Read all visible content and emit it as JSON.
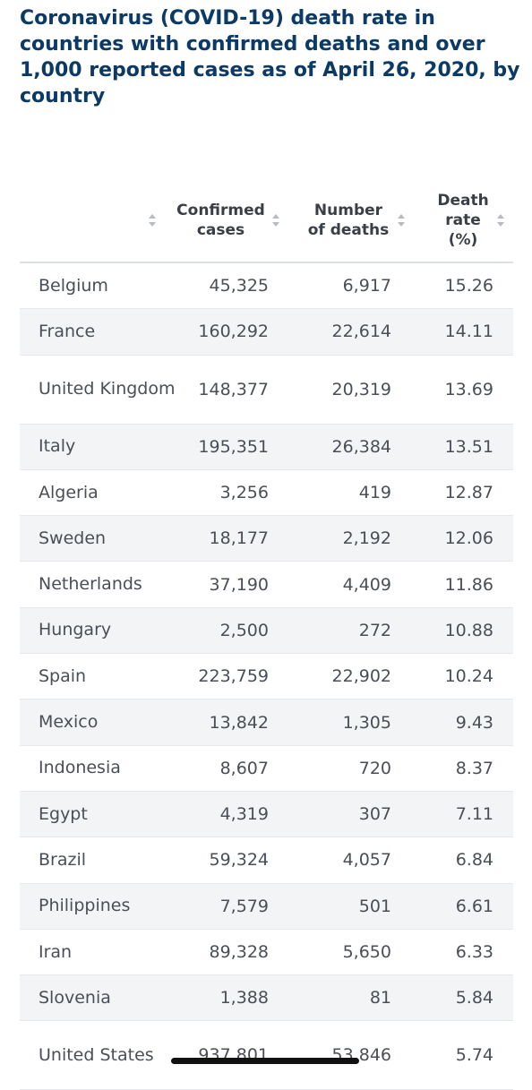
{
  "chart_data": {
    "type": "table",
    "title": "Coronavirus (COVID-19) death rate in countries with confirmed deaths and over 1,000 reported cases as of April 26, 2020, by country",
    "columns": [
      "",
      "Confirmed cases",
      "Number of deaths",
      "Death rate (%)"
    ],
    "rows": [
      {
        "country": "Belgium",
        "cases": "45,325",
        "deaths": "6,917",
        "rate": "15.26"
      },
      {
        "country": "France",
        "cases": "160,292",
        "deaths": "22,614",
        "rate": "14.11"
      },
      {
        "country": "United Kingdom",
        "cases": "148,377",
        "deaths": "20,319",
        "rate": "13.69"
      },
      {
        "country": "Italy",
        "cases": "195,351",
        "deaths": "26,384",
        "rate": "13.51"
      },
      {
        "country": "Algeria",
        "cases": "3,256",
        "deaths": "419",
        "rate": "12.87"
      },
      {
        "country": "Sweden",
        "cases": "18,177",
        "deaths": "2,192",
        "rate": "12.06"
      },
      {
        "country": "Netherlands",
        "cases": "37,190",
        "deaths": "4,409",
        "rate": "11.86"
      },
      {
        "country": "Hungary",
        "cases": "2,500",
        "deaths": "272",
        "rate": "10.88"
      },
      {
        "country": "Spain",
        "cases": "223,759",
        "deaths": "22,902",
        "rate": "10.24"
      },
      {
        "country": "Mexico",
        "cases": "13,842",
        "deaths": "1,305",
        "rate": "9.43"
      },
      {
        "country": "Indonesia",
        "cases": "8,607",
        "deaths": "720",
        "rate": "8.37"
      },
      {
        "country": "Egypt",
        "cases": "4,319",
        "deaths": "307",
        "rate": "7.11"
      },
      {
        "country": "Brazil",
        "cases": "59,324",
        "deaths": "4,057",
        "rate": "6.84"
      },
      {
        "country": "Philippines",
        "cases": "7,579",
        "deaths": "501",
        "rate": "6.61"
      },
      {
        "country": "Iran",
        "cases": "89,328",
        "deaths": "5,650",
        "rate": "6.33"
      },
      {
        "country": "Slovenia",
        "cases": "1,388",
        "deaths": "81",
        "rate": "5.84"
      },
      {
        "country": "United States",
        "cases": "937,801",
        "deaths": "53,846",
        "rate": "5.74"
      }
    ]
  },
  "colors": {
    "title": "#0b3a66",
    "text": "#4a4f57",
    "row_alt": "#f3f4f6",
    "sort_icon": "#b7bcc3"
  },
  "icons": {
    "sort": "sort-arrows-icon"
  }
}
